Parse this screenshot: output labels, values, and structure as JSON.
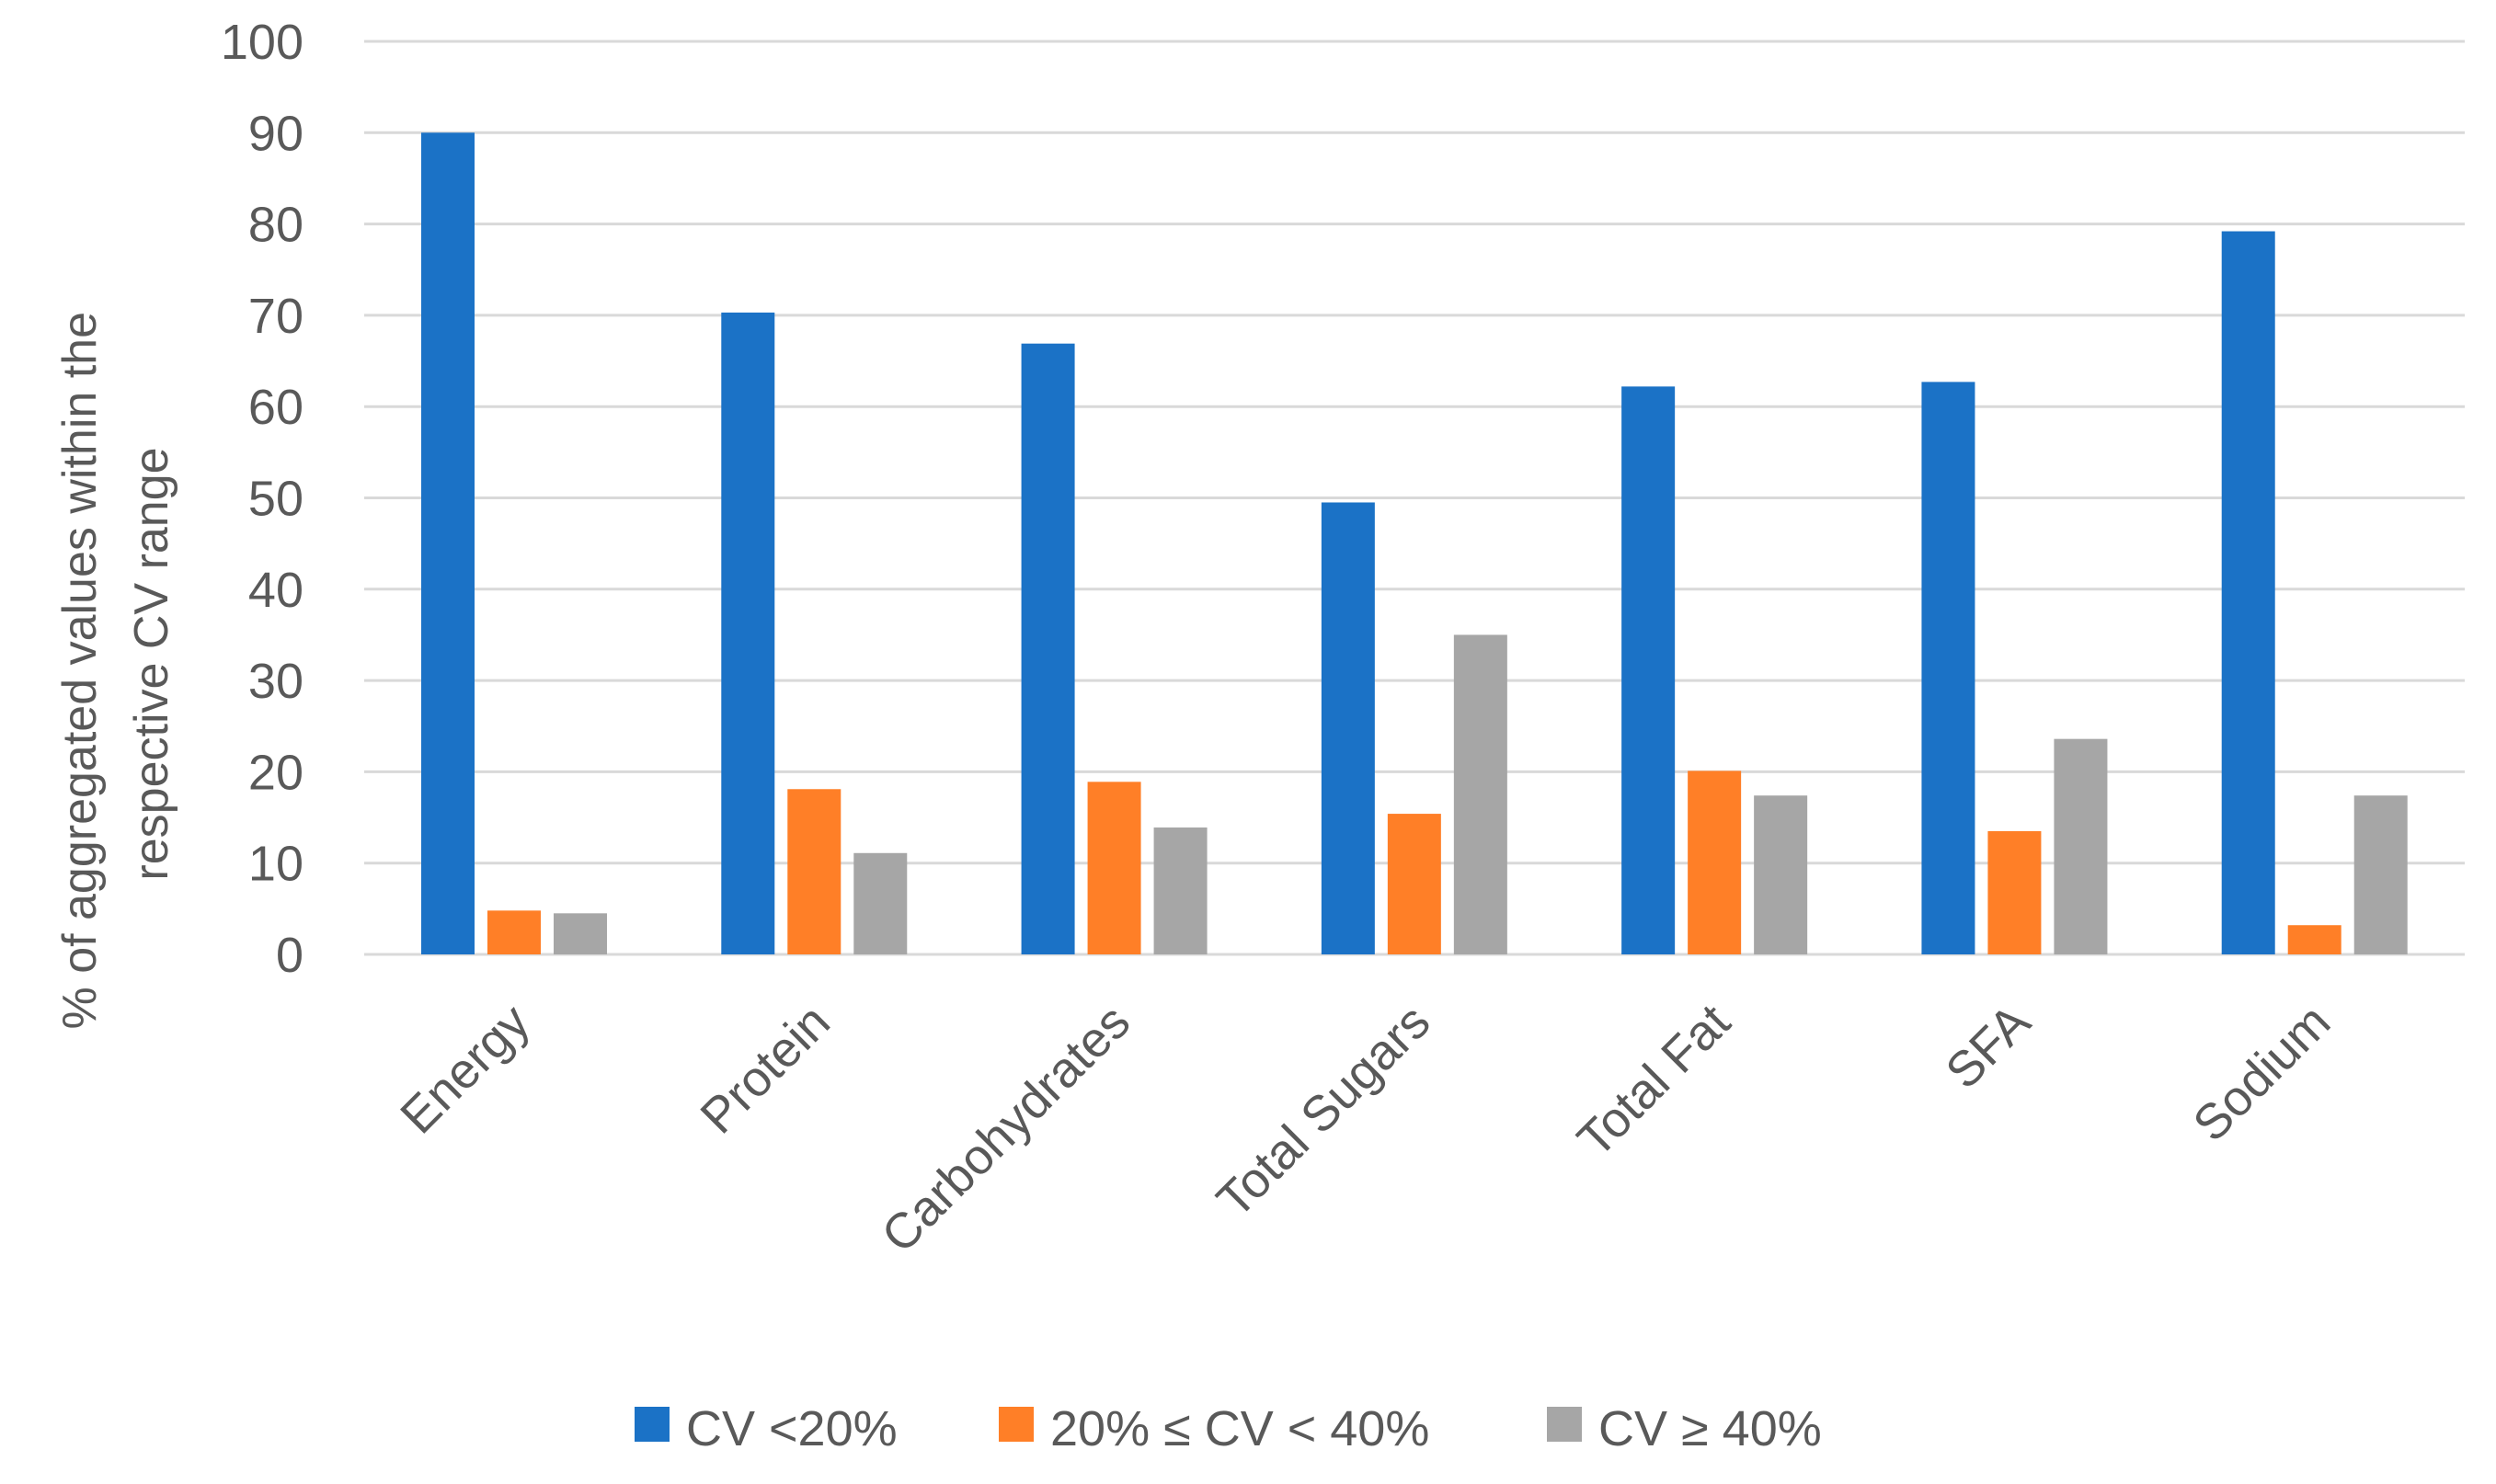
{
  "chart_data": {
    "type": "bar",
    "title": "",
    "xlabel": "",
    "ylabel": [
      "% of aggregated values within the",
      "respective CV range"
    ],
    "ylim": [
      0,
      100
    ],
    "yticks": [
      0,
      10,
      20,
      30,
      40,
      50,
      60,
      70,
      80,
      90,
      100
    ],
    "grid": true,
    "legend_position": "bottom",
    "categories": [
      "Energy",
      "Protein",
      "Carbohydrates",
      "Total Sugars",
      "Total Fat",
      "SFA",
      "Sodium"
    ],
    "series": [
      {
        "name": "CV <20%",
        "color": "#1B72C6",
        "values": [
          90,
          70.3,
          66.9,
          49.5,
          62.2,
          62.7,
          79.2
        ]
      },
      {
        "name": "20% ≤ CV < 40%",
        "color": "#FF7F27",
        "values": [
          4.8,
          18.1,
          18.9,
          15.4,
          20.1,
          13.5,
          3.2
        ]
      },
      {
        "name": "CV ≥ 40%",
        "color": "#A6A6A6",
        "values": [
          4.5,
          11.1,
          13.9,
          35,
          17.4,
          23.6,
          17.4
        ]
      }
    ]
  },
  "colors": {
    "grid": "#D9D9D9",
    "text": "#595959"
  }
}
